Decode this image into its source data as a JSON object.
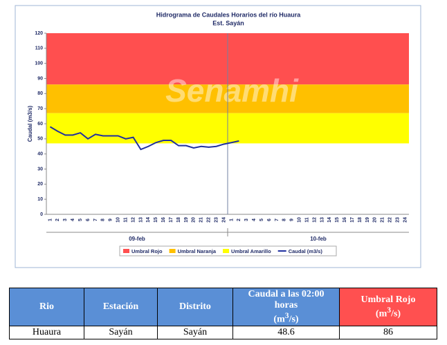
{
  "chart_data": {
    "type": "line",
    "title": "Hidrograma de Caudales Horarios del río Huaura",
    "subtitle": "Est. Sayán",
    "watermark": "Senamhi",
    "y_label": "Caudal (m3/s)",
    "ylim": [
      0,
      120
    ],
    "yticks": [
      0,
      10,
      20,
      30,
      40,
      50,
      60,
      70,
      80,
      90,
      100,
      110,
      120
    ],
    "categories": [
      "1",
      "2",
      "3",
      "4",
      "5",
      "6",
      "7",
      "8",
      "9",
      "10",
      "11",
      "12",
      "13",
      "14",
      "15",
      "16",
      "17",
      "18",
      "19",
      "20",
      "21",
      "22",
      "23",
      "24",
      "1",
      "2",
      "3",
      "4",
      "5",
      "6",
      "7",
      "8",
      "9",
      "10",
      "11",
      "12",
      "13",
      "14",
      "15",
      "16",
      "17",
      "18",
      "19",
      "20",
      "21",
      "22",
      "23",
      "24"
    ],
    "groups": [
      "09-feb",
      "10-feb"
    ],
    "thresholds": [
      {
        "name": "Umbral Rojo",
        "color": "#ff4f4f",
        "value": 86
      },
      {
        "name": "Umbral Naranja",
        "color": "#ffc000",
        "value": 67
      },
      {
        "name": "Umbral Amarillo",
        "color": "#ffff00",
        "value": 47
      }
    ],
    "series": [
      {
        "name": "Caudal (m3/s)",
        "color": "#1f2fa0",
        "values": [
          58,
          55,
          52.5,
          52.5,
          54,
          50,
          53,
          52,
          52,
          52,
          50,
          51,
          43,
          45,
          47.5,
          49,
          49,
          45.5,
          45.5,
          44,
          45,
          44.5,
          45,
          46.5,
          47.5,
          48.6,
          null,
          null,
          null,
          null,
          null,
          null,
          null,
          null,
          null,
          null,
          null,
          null,
          null,
          null,
          null,
          null,
          null,
          null,
          null,
          null,
          null,
          null
        ]
      }
    ]
  },
  "table": {
    "headers": [
      "Rio",
      "Estación",
      "Distrito",
      {
        "text": "Caudal a las 02:00 horas",
        "unit_pre": "(m",
        "sup": "3",
        "unit_post": "/s)"
      },
      {
        "text": "Umbral Rojo",
        "unit_pre": "(m",
        "sup": "3",
        "unit_post": "/s)"
      }
    ],
    "rows": [
      [
        "Huaura",
        "Sayán",
        "Sayán",
        "48.6",
        "86"
      ]
    ]
  }
}
